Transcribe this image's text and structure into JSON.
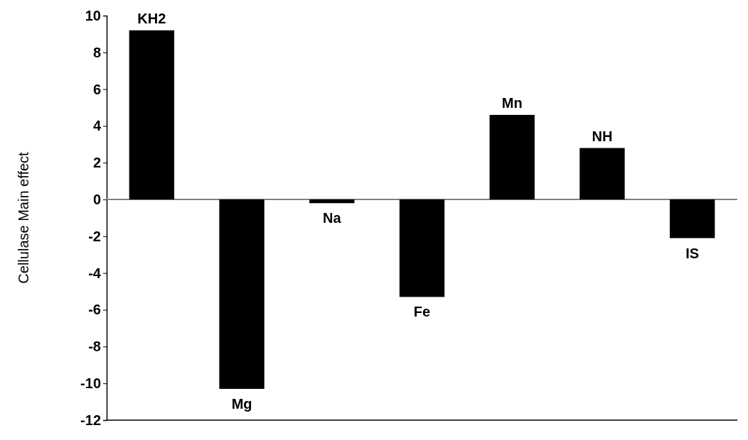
{
  "chart_data": {
    "type": "bar",
    "ylabel": "Cellulase Main effect",
    "categories": [
      "KH2",
      "Mg",
      "Na",
      "Fe",
      "Mn",
      "NH",
      "IS"
    ],
    "values": [
      9.2,
      -10.3,
      -0.2,
      -5.3,
      4.6,
      2.8,
      -2.1
    ],
    "color": "#000000",
    "ylim": [
      -12,
      10
    ],
    "yticks": [
      -12,
      -10,
      -8,
      -6,
      -4,
      -2,
      0,
      2,
      4,
      6,
      8,
      10
    ],
    "ref_lines": [
      {
        "axis": "y",
        "value": 0,
        "color": "#808080"
      }
    ],
    "grid": false
  }
}
